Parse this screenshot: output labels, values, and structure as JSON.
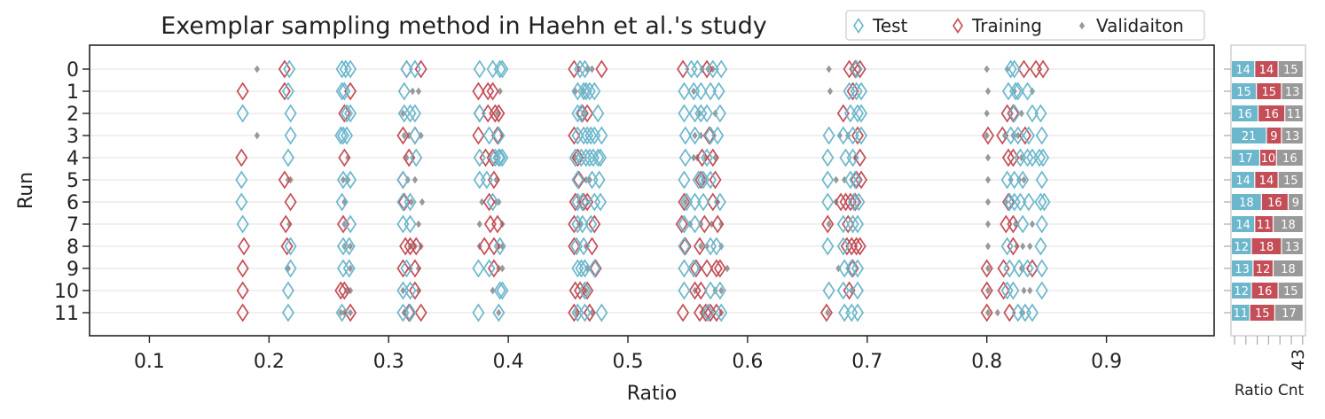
{
  "colors": {
    "test": "#6cb7cc",
    "training": "#c44e57",
    "validation": "#999999",
    "grid": "#e6e6e6",
    "axis": "#222222",
    "side_axis": "#cccccc"
  },
  "chart_data": [
    {
      "type": "scatter",
      "title": "Exemplar sampling method in Haehn et al.'s study",
      "xlabel": "Ratio",
      "ylabel": "Run",
      "xlim": [
        0.05,
        0.99
      ],
      "xticks": [
        "0.1",
        "0.2",
        "0.3",
        "0.4",
        "0.5",
        "0.6",
        "0.7",
        "0.8",
        "0.9"
      ],
      "xtick_values": [
        0.1,
        0.2,
        0.3,
        0.4,
        0.5,
        0.6,
        0.7,
        0.8,
        0.9
      ],
      "yticks": [
        "0",
        "1",
        "2",
        "3",
        "4",
        "5",
        "6",
        "7",
        "8",
        "9",
        "10",
        "11"
      ],
      "grid": "horizontal",
      "legend": {
        "placement": "top-right",
        "entries": [
          {
            "name": "Test",
            "color_key": "test"
          },
          {
            "name": "Training",
            "color_key": "training"
          },
          {
            "name": "Validaiton",
            "color_key": "validation"
          }
        ]
      },
      "series": [
        {
          "name": "Test",
          "points": {
            "0": [
              0.217,
              0.261,
              0.264,
              0.268,
              0.315,
              0.322,
              0.376,
              0.387,
              0.393,
              0.395,
              0.46,
              0.464,
              0.553,
              0.558,
              0.571,
              0.578,
              0.691,
              0.82,
              0.823
            ],
            "1": [
              0.216,
              0.261,
              0.263,
              0.313,
              0.458,
              0.463,
              0.465,
              0.468,
              0.472,
              0.547,
              0.555,
              0.561,
              0.569,
              0.576,
              0.685,
              0.691,
              0.695,
              0.818,
              0.824,
              0.826,
              0.834
            ],
            "2": [
              0.178,
              0.218,
              0.265,
              0.268,
              0.313,
              0.318,
              0.322,
              0.376,
              0.458,
              0.461,
              0.475,
              0.547,
              0.556,
              0.561,
              0.566,
              0.577,
              0.686,
              0.692,
              0.695,
              0.823,
              0.838,
              0.845
            ],
            "3": [
              0.218,
              0.26,
              0.262,
              0.265,
              0.322,
              0.384,
              0.392,
              0.458,
              0.463,
              0.466,
              0.469,
              0.472,
              0.478,
              0.548,
              0.556,
              0.569,
              0.575,
              0.668,
              0.68,
              0.688,
              0.695,
              0.82,
              0.826,
              0.835,
              0.846
            ],
            "4": [
              0.216,
              0.323,
              0.376,
              0.389,
              0.392,
              0.393,
              0.395,
              0.456,
              0.461,
              0.465,
              0.468,
              0.471,
              0.475,
              0.477,
              0.548,
              0.566,
              0.667,
              0.682,
              0.688,
              0.828,
              0.834,
              0.838,
              0.844,
              0.847
            ],
            "5": [
              0.177,
              0.262,
              0.268,
              0.312,
              0.376,
              0.382,
              0.458,
              0.47,
              0.476,
              0.547,
              0.559,
              0.563,
              0.569,
              0.667,
              0.686,
              0.69,
              0.817,
              0.823,
              0.83,
              0.846
            ],
            "6": [
              0.177,
              0.261,
              0.312,
              0.318,
              0.387,
              0.458,
              0.462,
              0.472,
              0.477,
              0.549,
              0.556,
              0.563,
              0.577,
              0.667,
              0.689,
              0.693,
              0.819,
              0.823,
              0.828,
              0.835,
              0.845,
              0.848
            ],
            "7": [
              0.178,
              0.268,
              0.312,
              0.318,
              0.458,
              0.462,
              0.469,
              0.547,
              0.556,
              0.68,
              0.688,
              0.692,
              0.83,
              0.846
            ],
            "8": [
              0.218,
              0.262,
              0.267,
              0.393,
              0.457,
              0.463,
              0.547,
              0.569,
              0.574,
              0.667,
              0.68,
              0.817,
              0.845
            ],
            "9": [
              0.218,
              0.262,
              0.267,
              0.315,
              0.375,
              0.384,
              0.458,
              0.461,
              0.464,
              0.472,
              0.547,
              0.555,
              0.681,
              0.687,
              0.692,
              0.819,
              0.827,
              0.834,
              0.846
            ],
            "10": [
              0.216,
              0.312,
              0.318,
              0.393,
              0.395,
              0.464,
              0.547,
              0.569,
              0.577,
              0.668,
              0.68,
              0.692,
              0.817,
              0.822,
              0.846
            ],
            "11": [
              0.216,
              0.261,
              0.312,
              0.318,
              0.375,
              0.392,
              0.458,
              0.464,
              0.478,
              0.567,
              0.578,
              0.681,
              0.687,
              0.692,
              0.826,
              0.832,
              0.838
            ]
          }
        },
        {
          "name": "Training",
          "points": {
            "0": [
              0.213,
              0.315,
              0.327,
              0.455,
              0.478,
              0.546,
              0.566,
              0.685,
              0.69,
              0.694,
              0.831,
              0.841,
              0.847
            ],
            "1": [
              0.178,
              0.213,
              0.268,
              0.375,
              0.383,
              0.387,
              0.688
            ],
            "2": [
              0.263,
              0.376,
              0.383,
              0.389,
              0.392,
              0.462,
              0.466,
              0.68,
              0.817,
              0.822
            ],
            "3": [
              0.312,
              0.322,
              0.375,
              0.391,
              0.455,
              0.568,
              0.692,
              0.801,
              0.813,
              0.832
            ],
            "4": [
              0.177,
              0.263,
              0.317,
              0.381,
              0.387,
              0.458,
              0.562,
              0.571,
              0.694,
              0.818,
              0.822
            ],
            "5": [
              0.213,
              0.312,
              0.388,
              0.459,
              0.561,
              0.573,
              0.691,
              0.695
            ],
            "6": [
              0.218,
              0.313,
              0.384,
              0.456,
              0.463,
              0.466,
              0.547,
              0.571,
              0.678,
              0.682,
              0.686,
              0.69,
              0.818
            ],
            "7": [
              0.214,
              0.262,
              0.385,
              0.391,
              0.455,
              0.472,
              0.545,
              0.564,
              0.575,
              0.667,
              0.684,
              0.816,
              0.822
            ],
            "8": [
              0.179,
              0.215,
              0.314,
              0.318,
              0.323,
              0.38,
              0.388,
              0.455,
              0.47,
              0.548,
              0.56,
              0.683,
              0.687,
              0.691,
              0.694,
              0.822
            ],
            "9": [
              0.178,
              0.312,
              0.322,
              0.388,
              0.473,
              0.557,
              0.566,
              0.574,
              0.577,
              0.688,
              0.8,
              0.814,
              0.838
            ],
            "10": [
              0.178,
              0.26,
              0.263,
              0.322,
              0.456,
              0.46,
              0.466,
              0.556,
              0.561,
              0.685,
              0.8,
              0.814
            ],
            "11": [
              0.178,
              0.268,
              0.317,
              0.327,
              0.455,
              0.468,
              0.546,
              0.56,
              0.565,
              0.569,
              0.574,
              0.666,
              0.8,
              0.819
            ]
          }
        },
        {
          "name": "Validaiton",
          "points": {
            "0": [
              0.19,
              0.459,
              0.466,
              0.47,
              0.562,
              0.567,
              0.571,
              0.668,
              0.8,
              0.817
            ],
            "1": [
              0.32,
              0.325,
              0.393,
              0.456,
              0.463,
              0.555,
              0.669,
              0.801,
              0.823,
              0.838
            ],
            "2": [
              0.312,
              0.391,
              0.465,
              0.56,
              0.573,
              0.8,
              0.829
            ],
            "3": [
              0.19,
              0.313,
              0.317,
              0.327,
              0.395,
              0.556,
              0.561,
              0.677,
              0.684,
              0.8,
              0.815,
              0.822,
              0.826
            ],
            "4": [
              0.266,
              0.315,
              0.32,
              0.456,
              0.555,
              0.558,
              0.565,
              0.573,
              0.69,
              0.801,
              0.829
            ],
            "5": [
              0.216,
              0.218,
              0.262,
              0.266,
              0.316,
              0.322,
              0.39,
              0.465,
              0.468,
              0.563,
              0.674,
              0.681,
              0.801,
              0.82,
              0.827,
              0.831
            ],
            "6": [
              0.263,
              0.319,
              0.328,
              0.378,
              0.39,
              0.392,
              0.548,
              0.575,
              0.674,
              0.801,
              0.816
            ],
            "7": [
              0.217,
              0.263,
              0.325,
              0.376,
              0.395,
              0.46,
              0.552,
              0.561,
              0.57,
              0.578,
              0.668,
              0.801,
              0.824,
              0.838
            ],
            "8": [
              0.263,
              0.268,
              0.318,
              0.322,
              0.327,
              0.376,
              0.392,
              0.395,
              0.465,
              0.561,
              0.566,
              0.578,
              0.801,
              0.825,
              0.83,
              0.836
            ],
            "9": [
              0.216,
              0.268,
              0.318,
              0.325,
              0.392,
              0.395,
              0.466,
              0.56,
              0.583,
              0.676,
              0.801,
              0.829
            ],
            "10": [
              0.265,
              0.268,
              0.312,
              0.325,
              0.387,
              0.465,
              0.556,
              0.573,
              0.578,
              0.687,
              0.801,
              0.831,
              0.836
            ],
            "11": [
              0.26,
              0.263,
              0.268,
              0.313,
              0.392,
              0.457,
              0.47,
              0.562,
              0.578,
              0.667,
              0.801,
              0.809,
              0.83
            ]
          }
        }
      ]
    },
    {
      "type": "bar",
      "stacked": true,
      "orientation": "horizontal",
      "xlabel": "Ratio Cnt",
      "xtick_label": "43",
      "categories": [
        "0",
        "1",
        "2",
        "3",
        "4",
        "5",
        "6",
        "7",
        "8",
        "9",
        "10",
        "11"
      ],
      "series": [
        {
          "name": "Test",
          "color_key": "test",
          "values": [
            14,
            15,
            16,
            21,
            17,
            14,
            18,
            14,
            12,
            13,
            12,
            11
          ]
        },
        {
          "name": "Training",
          "color_key": "training",
          "values": [
            14,
            15,
            16,
            9,
            10,
            14,
            16,
            11,
            18,
            12,
            16,
            15
          ]
        },
        {
          "name": "Validaiton",
          "color_key": "validation",
          "values": [
            15,
            13,
            11,
            13,
            16,
            15,
            9,
            18,
            13,
            18,
            15,
            17
          ]
        }
      ]
    }
  ]
}
